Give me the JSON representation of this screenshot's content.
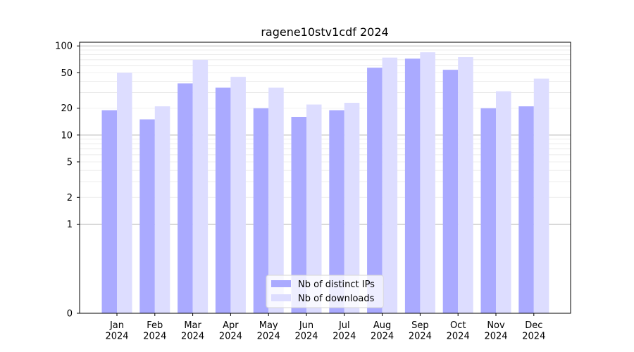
{
  "chart_data": {
    "type": "bar",
    "title": "ragene10stv1cdf 2024",
    "xlabel": "",
    "ylabel": "",
    "y_scale": "symlog",
    "y_ticks": [
      0,
      1,
      2,
      5,
      10,
      20,
      50,
      100
    ],
    "ylim": [
      0,
      110
    ],
    "grid": true,
    "legend_position": "bottom-center",
    "categories": [
      "Jan\n2024",
      "Feb\n2024",
      "Mar\n2024",
      "Apr\n2024",
      "May\n2024",
      "Jun\n2024",
      "Jul\n2024",
      "Aug\n2024",
      "Sep\n2024",
      "Oct\n2024",
      "Nov\n2024",
      "Dec\n2024"
    ],
    "series": [
      {
        "name": "Nb of distinct IPs",
        "color": "#aaaaff",
        "values": [
          19,
          15,
          38,
          34,
          20,
          16,
          19,
          57,
          72,
          54,
          20,
          21
        ]
      },
      {
        "name": "Nb of downloads",
        "color": "#ddddff",
        "values": [
          50,
          21,
          70,
          45,
          34,
          22,
          23,
          74,
          85,
          75,
          31,
          43
        ]
      }
    ]
  }
}
